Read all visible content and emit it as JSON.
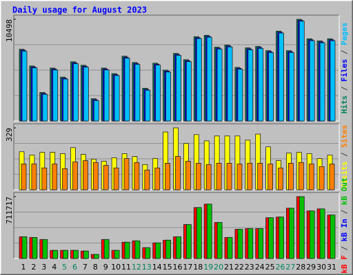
{
  "title": "Daily usage for August 2023",
  "categories": [
    "1",
    "2",
    "3",
    "4",
    "5",
    "6",
    "7",
    "8",
    "9",
    "10",
    "11",
    "12",
    "13",
    "14",
    "15",
    "16",
    "17",
    "18",
    "19",
    "20",
    "21",
    "22",
    "23",
    "24",
    "25",
    "26",
    "27",
    "28",
    "29",
    "30",
    "31"
  ],
  "highlight": {
    "indices": [
      4,
      5,
      11,
      12,
      18,
      19,
      25,
      26
    ],
    "color": "#00805c"
  },
  "chart_data": [
    {
      "type": "bar",
      "legend_separator": " / ",
      "ylim": [
        0,
        10498
      ],
      "yticks": [
        10498
      ],
      "series": [
        {
          "name": "Hits",
          "color": "#00805c",
          "values": [
            7406,
            5680,
            2948,
            5465,
            4530,
            6112,
            5752,
            2301,
            5465,
            4889,
            6687,
            6040,
            3379,
            5968,
            5249,
            6975,
            6328,
            8700,
            8844,
            7622,
            7838,
            5537,
            7550,
            7694,
            7262,
            9276,
            7262,
            10498,
            8485,
            8269,
            8485
          ]
        },
        {
          "name": "Files",
          "color": "#0000ff",
          "values": [
            7306,
            5580,
            2848,
            5365,
            4430,
            6012,
            5652,
            2201,
            5365,
            4789,
            6587,
            5940,
            3279,
            5868,
            5149,
            6875,
            6228,
            8600,
            8744,
            7522,
            7738,
            5437,
            7450,
            7594,
            7162,
            9176,
            7162,
            10398,
            8385,
            8169,
            8385
          ]
        },
        {
          "name": "Pages",
          "color": "#00c0ff",
          "values": [
            7206,
            5480,
            2748,
            5265,
            4330,
            5912,
            5552,
            2101,
            5265,
            4689,
            6487,
            5840,
            3179,
            5768,
            5049,
            6775,
            6128,
            8500,
            8644,
            7422,
            7638,
            5337,
            7350,
            7494,
            7062,
            9076,
            7062,
            10298,
            8285,
            8069,
            8285
          ]
        }
      ]
    },
    {
      "type": "bar",
      "legend_separator": " / ",
      "ylim": [
        0,
        329
      ],
      "yticks": [
        329
      ],
      "series": [
        {
          "name": "Visits",
          "color": "#ffff00",
          "values": [
            202,
            184,
            199,
            199,
            192,
            224,
            188,
            163,
            152,
            170,
            192,
            177,
            134,
            166,
            307,
            329,
            246,
            293,
            260,
            286,
            286,
            286,
            264,
            296,
            228,
            155,
            195,
            199,
            192,
            166,
            184
          ]
        },
        {
          "name": "Sites",
          "color": "#ff8000",
          "values": [
            137,
            137,
            116,
            137,
            112,
            148,
            155,
            145,
            130,
            116,
            166,
            145,
            105,
            116,
            141,
            177,
            152,
            141,
            134,
            141,
            141,
            137,
            141,
            141,
            137,
            116,
            141,
            145,
            137,
            123,
            137
          ]
        }
      ]
    },
    {
      "type": "bar",
      "legend_separator": " / ",
      "ylim": [
        0,
        711717
      ],
      "yticks": [
        711717
      ],
      "series": [
        {
          "name": "kB F",
          "color": "#ff0000",
          "values": [
            250273,
            242453,
            218990,
            93853,
            93853,
            93853,
            86031,
            46926,
            218990,
            93853,
            187705,
            203349,
            125136,
            179884,
            211169,
            250273,
            391053,
            586580,
            625685,
            414516,
            242453,
            336306,
            344127,
            344127,
            469264,
            477085,
            578757,
            711717,
            547475,
            570937,
            500550
          ]
        },
        {
          "name": "kB In",
          "color": "#0000ff",
          "values": [
            0,
            0,
            0,
            0,
            0,
            0,
            0,
            0,
            0,
            0,
            0,
            0,
            0,
            0,
            0,
            0,
            0,
            0,
            0,
            0,
            0,
            0,
            0,
            0,
            0,
            0,
            0,
            0,
            0,
            0,
            0
          ]
        },
        {
          "name": "kB Out",
          "color": "#00c000",
          "values": [
            250273,
            242453,
            218990,
            93853,
            93853,
            93853,
            86031,
            46926,
            218990,
            93853,
            187705,
            203349,
            125136,
            179884,
            211169,
            250273,
            391053,
            586580,
            625685,
            414516,
            242453,
            336306,
            344127,
            344127,
            469264,
            477085,
            578757,
            711717,
            547475,
            570937,
            500550
          ]
        }
      ]
    }
  ]
}
